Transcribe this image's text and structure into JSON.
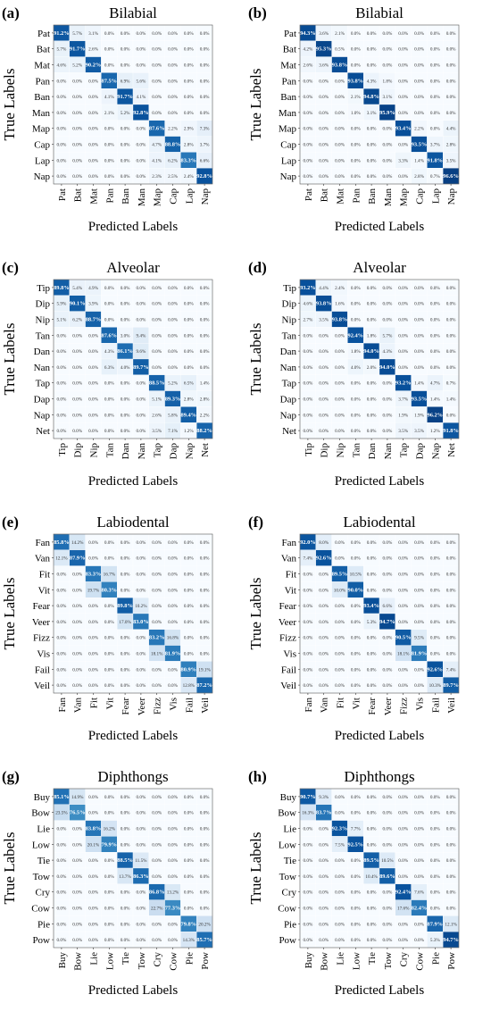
{
  "chart_data": [
    {
      "type": "heatmap",
      "panel_label": "(a)",
      "title": "Bilabial",
      "xlabel": "Predicted Labels",
      "ylabel": "True Labels",
      "labels": [
        "Pat",
        "Bat",
        "Mat",
        "Pan",
        "Ban",
        "Man",
        "Map",
        "Cap",
        "Lap",
        "Nap"
      ],
      "values": [
        [
          91.2,
          5.7,
          3.1,
          0.0,
          0.0,
          0.0,
          0.0,
          0.0,
          0.0,
          0.0
        ],
        [
          5.7,
          91.7,
          2.6,
          0.0,
          0.0,
          0.0,
          0.0,
          0.0,
          0.0,
          0.0
        ],
        [
          4.6,
          5.2,
          90.2,
          0.0,
          0.0,
          0.0,
          0.0,
          0.0,
          0.0,
          0.0
        ],
        [
          0.0,
          0.0,
          0.0,
          87.5,
          6.9,
          5.6,
          0.0,
          0.0,
          0.0,
          0.0
        ],
        [
          0.0,
          0.0,
          0.0,
          4.1,
          91.7,
          4.1,
          0.0,
          0.0,
          0.0,
          0.0
        ],
        [
          0.0,
          0.0,
          0.0,
          2.1,
          5.2,
          92.8,
          0.0,
          0.0,
          0.0,
          0.0
        ],
        [
          0.0,
          0.0,
          0.0,
          0.0,
          0.0,
          0.0,
          87.6,
          2.2,
          2.9,
          7.3
        ],
        [
          0.0,
          0.0,
          0.0,
          0.0,
          0.0,
          0.0,
          4.7,
          88.8,
          2.8,
          3.7
        ],
        [
          0.0,
          0.0,
          0.0,
          0.0,
          0.0,
          0.0,
          4.1,
          6.2,
          83.3,
          6.6
        ],
        [
          0.0,
          0.0,
          0.0,
          0.0,
          0.0,
          0.0,
          2.3,
          2.5,
          2.4,
          92.8
        ]
      ]
    },
    {
      "type": "heatmap",
      "panel_label": "(b)",
      "title": "Bilabial",
      "xlabel": "Predicted Labels",
      "ylabel": "True Labels",
      "labels": [
        "Pat",
        "Bat",
        "Mat",
        "Pan",
        "Ban",
        "Man",
        "Map",
        "Cap",
        "Lap",
        "Nap"
      ],
      "values": [
        [
          94.3,
          3.6,
          2.1,
          0.0,
          0.0,
          0.0,
          0.0,
          0.0,
          0.0,
          0.0
        ],
        [
          4.2,
          95.3,
          0.5,
          0.0,
          0.0,
          0.0,
          0.0,
          0.0,
          0.0,
          0.0
        ],
        [
          2.6,
          3.6,
          93.8,
          0.0,
          0.0,
          0.0,
          0.0,
          0.0,
          0.0,
          0.0
        ],
        [
          0.0,
          0.0,
          0.0,
          93.8,
          4.3,
          1.8,
          0.0,
          0.0,
          0.0,
          0.0
        ],
        [
          0.0,
          0.0,
          0.0,
          2.1,
          94.8,
          3.1,
          0.0,
          0.0,
          0.0,
          0.0
        ],
        [
          0.0,
          0.0,
          0.0,
          1.0,
          3.1,
          95.9,
          0.0,
          0.0,
          0.0,
          0.0
        ],
        [
          0.0,
          0.0,
          0.0,
          0.0,
          0.0,
          0.0,
          93.4,
          2.2,
          0.0,
          4.4
        ],
        [
          0.0,
          0.0,
          0.0,
          0.0,
          0.0,
          0.0,
          0.0,
          93.5,
          3.7,
          2.8
        ],
        [
          0.0,
          0.0,
          0.0,
          0.0,
          0.0,
          0.0,
          3.3,
          1.4,
          91.8,
          3.5
        ],
        [
          0.0,
          0.0,
          0.0,
          0.0,
          0.0,
          0.0,
          0.0,
          2.8,
          0.7,
          96.6
        ]
      ]
    },
    {
      "type": "heatmap",
      "panel_label": "(c)",
      "title": "Alveolar",
      "xlabel": "Predicted Labels",
      "ylabel": "True Labels",
      "labels": [
        "Tip",
        "Dip",
        "Nip",
        "Tan",
        "Dan",
        "Nan",
        "Tap",
        "Dap",
        "Nap",
        "Net"
      ],
      "values": [
        [
          89.8,
          5.4,
          4.9,
          0.0,
          0.0,
          0.0,
          0.0,
          0.0,
          0.0,
          0.0
        ],
        [
          5.9,
          90.1,
          3.9,
          0.0,
          0.0,
          0.0,
          0.0,
          0.0,
          0.0,
          0.0
        ],
        [
          5.1,
          6.2,
          88.7,
          0.0,
          0.0,
          0.0,
          0.0,
          0.0,
          0.0,
          0.0
        ],
        [
          0.0,
          0.0,
          0.0,
          87.6,
          3.0,
          9.4,
          0.0,
          0.0,
          0.0,
          0.0
        ],
        [
          0.0,
          0.0,
          0.0,
          4.3,
          86.1,
          9.6,
          0.0,
          0.0,
          0.0,
          0.0
        ],
        [
          0.0,
          0.0,
          0.0,
          6.3,
          4.0,
          89.7,
          0.0,
          0.0,
          0.0,
          0.0
        ],
        [
          0.0,
          0.0,
          0.0,
          0.0,
          0.0,
          0.0,
          88.5,
          5.2,
          6.5,
          1.4
        ],
        [
          0.0,
          0.0,
          0.0,
          0.0,
          0.0,
          0.0,
          5.1,
          89.3,
          2.8,
          2.8
        ],
        [
          0.0,
          0.0,
          0.0,
          0.0,
          0.0,
          0.0,
          2.6,
          5.8,
          89.4,
          2.2
        ],
        [
          0.0,
          0.0,
          0.0,
          0.0,
          0.0,
          0.0,
          3.5,
          7.1,
          1.2,
          88.2
        ]
      ]
    },
    {
      "type": "heatmap",
      "panel_label": "(d)",
      "title": "Alveolar",
      "xlabel": "Predicted Labels",
      "ylabel": "True Labels",
      "labels": [
        "Tip",
        "Dip",
        "Nip",
        "Tan",
        "Dan",
        "Nan",
        "Tap",
        "Dap",
        "Nap",
        "Net"
      ],
      "values": [
        [
          93.2,
          4.4,
          2.4,
          0.0,
          0.0,
          0.0,
          0.0,
          0.0,
          0.0,
          0.0
        ],
        [
          4.6,
          93.8,
          1.6,
          0.0,
          0.0,
          0.0,
          0.0,
          0.0,
          0.0,
          0.0
        ],
        [
          2.7,
          3.5,
          93.8,
          0.0,
          0.0,
          0.0,
          0.0,
          0.0,
          0.0,
          0.0
        ],
        [
          0.0,
          0.0,
          0.0,
          92.4,
          1.8,
          5.7,
          0.0,
          0.0,
          0.0,
          0.0
        ],
        [
          0.0,
          0.0,
          0.0,
          1.8,
          94.0,
          4.3,
          0.0,
          0.0,
          0.0,
          0.0
        ],
        [
          0.0,
          0.0,
          0.0,
          4.0,
          2.0,
          94.0,
          0.0,
          0.0,
          0.0,
          0.0
        ],
        [
          0.0,
          0.0,
          0.0,
          0.0,
          0.0,
          0.0,
          93.2,
          1.4,
          4.7,
          0.7
        ],
        [
          0.0,
          0.0,
          0.0,
          0.0,
          0.0,
          0.0,
          3.7,
          93.5,
          1.4,
          1.4
        ],
        [
          0.0,
          0.0,
          0.0,
          0.0,
          0.0,
          0.0,
          1.9,
          1.9,
          96.2,
          0.0
        ],
        [
          0.0,
          0.0,
          0.0,
          0.0,
          0.0,
          0.0,
          3.5,
          3.5,
          1.2,
          91.8
        ]
      ]
    },
    {
      "type": "heatmap",
      "panel_label": "(e)",
      "title": "Labiodental",
      "xlabel": "Predicted Labels",
      "ylabel": "True Labels",
      "labels": [
        "Fan",
        "Van",
        "Fit",
        "Vit",
        "Fear",
        "Veer",
        "Fizz",
        "Vis",
        "Fail",
        "Veil"
      ],
      "values": [
        [
          85.8,
          14.2,
          0.0,
          0.0,
          0.0,
          0.0,
          0.0,
          0.0,
          0.0,
          0.0
        ],
        [
          12.1,
          87.9,
          0.0,
          0.0,
          0.0,
          0.0,
          0.0,
          0.0,
          0.0,
          0.0
        ],
        [
          0.0,
          0.0,
          83.3,
          16.7,
          0.0,
          0.0,
          0.0,
          0.0,
          0.0,
          0.0
        ],
        [
          0.0,
          0.0,
          19.7,
          80.3,
          0.0,
          0.0,
          0.0,
          0.0,
          0.0,
          0.0
        ],
        [
          0.0,
          0.0,
          0.0,
          0.0,
          89.8,
          10.2,
          0.0,
          0.0,
          0.0,
          0.0
        ],
        [
          0.0,
          0.0,
          0.0,
          0.0,
          17.0,
          83.0,
          0.0,
          0.0,
          0.0,
          0.0
        ],
        [
          0.0,
          0.0,
          0.0,
          0.0,
          0.0,
          0.0,
          83.2,
          16.8,
          0.0,
          0.0
        ],
        [
          0.0,
          0.0,
          0.0,
          0.0,
          0.0,
          0.0,
          18.1,
          81.9,
          0.0,
          0.0
        ],
        [
          0.0,
          0.0,
          0.0,
          0.0,
          0.0,
          0.0,
          0.0,
          0.0,
          80.9,
          19.1
        ],
        [
          0.0,
          0.0,
          0.0,
          0.0,
          0.0,
          0.0,
          0.0,
          0.0,
          12.8,
          87.2
        ]
      ]
    },
    {
      "type": "heatmap",
      "panel_label": "(f)",
      "title": "Labiodental",
      "xlabel": "Predicted Labels",
      "ylabel": "True Labels",
      "labels": [
        "Fan",
        "Van",
        "Fit",
        "Vit",
        "Fear",
        "Veer",
        "Fizz",
        "Vis",
        "Fail",
        "Veil"
      ],
      "values": [
        [
          92.0,
          8.0,
          0.0,
          0.0,
          0.0,
          0.0,
          0.0,
          0.0,
          0.0,
          0.0
        ],
        [
          7.4,
          92.6,
          0.0,
          0.0,
          0.0,
          0.0,
          0.0,
          0.0,
          0.0,
          0.0
        ],
        [
          0.0,
          0.0,
          89.5,
          10.5,
          0.0,
          0.0,
          0.0,
          0.0,
          0.0,
          0.0
        ],
        [
          0.0,
          0.0,
          10.0,
          90.0,
          0.0,
          0.0,
          0.0,
          0.0,
          0.0,
          0.0
        ],
        [
          0.0,
          0.0,
          0.0,
          0.0,
          93.4,
          6.6,
          0.0,
          0.0,
          0.0,
          0.0
        ],
        [
          0.0,
          0.0,
          0.0,
          0.0,
          5.3,
          94.7,
          0.0,
          0.0,
          0.0,
          0.0
        ],
        [
          0.0,
          0.0,
          0.0,
          0.0,
          0.0,
          0.0,
          90.5,
          9.5,
          0.0,
          0.0
        ],
        [
          0.0,
          0.0,
          0.0,
          0.0,
          0.0,
          0.0,
          18.1,
          81.9,
          0.0,
          0.0
        ],
        [
          0.0,
          0.0,
          0.0,
          0.0,
          0.0,
          0.0,
          0.0,
          0.0,
          92.6,
          7.4
        ],
        [
          0.0,
          0.0,
          0.0,
          0.0,
          0.0,
          0.0,
          0.0,
          0.0,
          10.3,
          89.7
        ]
      ]
    },
    {
      "type": "heatmap",
      "panel_label": "(g)",
      "title": "Diphthongs",
      "xlabel": "Predicted Labels",
      "ylabel": "True Labels",
      "labels": [
        "Buy",
        "Bow",
        "Lie",
        "Low",
        "Tie",
        "Tow",
        "Cry",
        "Cow",
        "Pie",
        "Pow"
      ],
      "values": [
        [
          85.1,
          14.9,
          0.0,
          0.0,
          0.0,
          0.0,
          0.0,
          0.0,
          0.0,
          0.0
        ],
        [
          23.5,
          76.5,
          0.0,
          0.0,
          0.0,
          0.0,
          0.0,
          0.0,
          0.0,
          0.0
        ],
        [
          0.0,
          0.0,
          83.8,
          16.2,
          0.0,
          0.0,
          0.0,
          0.0,
          0.0,
          0.0
        ],
        [
          0.0,
          0.0,
          20.1,
          79.9,
          0.0,
          0.0,
          0.0,
          0.0,
          0.0,
          0.0
        ],
        [
          0.0,
          0.0,
          0.0,
          0.0,
          88.5,
          11.5,
          0.0,
          0.0,
          0.0,
          0.0
        ],
        [
          0.0,
          0.0,
          0.0,
          0.0,
          13.7,
          86.3,
          0.0,
          0.0,
          0.0,
          0.0
        ],
        [
          0.0,
          0.0,
          0.0,
          0.0,
          0.0,
          0.0,
          86.8,
          13.2,
          0.0,
          0.0
        ],
        [
          0.0,
          0.0,
          0.0,
          0.0,
          0.0,
          0.0,
          22.7,
          77.3,
          0.0,
          0.0
        ],
        [
          0.0,
          0.0,
          0.0,
          0.0,
          0.0,
          0.0,
          0.0,
          0.0,
          79.8,
          20.2
        ],
        [
          0.0,
          0.0,
          0.0,
          0.0,
          0.0,
          0.0,
          0.0,
          0.0,
          14.3,
          85.7
        ]
      ]
    },
    {
      "type": "heatmap",
      "panel_label": "(h)",
      "title": "Diphthongs",
      "xlabel": "Predicted Labels",
      "ylabel": "True Labels",
      "labels": [
        "Buy",
        "Bow",
        "Lie",
        "Low",
        "Tie",
        "Tow",
        "Cry",
        "Cow",
        "Pie",
        "Pow"
      ],
      "values": [
        [
          90.7,
          9.3,
          0.0,
          0.0,
          0.0,
          0.0,
          0.0,
          0.0,
          0.0,
          0.0
        ],
        [
          16.3,
          83.7,
          0.0,
          0.0,
          0.0,
          0.0,
          0.0,
          0.0,
          0.0,
          0.0
        ],
        [
          0.0,
          0.0,
          92.3,
          7.7,
          0.0,
          0.0,
          0.0,
          0.0,
          0.0,
          0.0
        ],
        [
          0.0,
          0.0,
          7.5,
          92.5,
          0.0,
          0.0,
          0.0,
          0.0,
          0.0,
          0.0
        ],
        [
          0.0,
          0.0,
          0.0,
          0.0,
          89.5,
          10.5,
          0.0,
          0.0,
          0.0,
          0.0
        ],
        [
          0.0,
          0.0,
          0.0,
          0.0,
          10.4,
          89.6,
          0.0,
          0.0,
          0.0,
          0.0
        ],
        [
          0.0,
          0.0,
          0.0,
          0.0,
          0.0,
          0.0,
          92.4,
          7.6,
          0.0,
          0.0
        ],
        [
          0.0,
          0.0,
          0.0,
          0.0,
          0.0,
          0.0,
          17.6,
          82.4,
          0.0,
          0.0
        ],
        [
          0.0,
          0.0,
          0.0,
          0.0,
          0.0,
          0.0,
          0.0,
          0.0,
          87.9,
          12.1
        ],
        [
          0.0,
          0.0,
          0.0,
          0.0,
          0.0,
          0.0,
          0.0,
          0.0,
          5.3,
          94.7
        ]
      ]
    }
  ],
  "colors": {
    "low": "#f7fbff",
    "high": "#08306b",
    "cell_border": "#ffffff"
  }
}
